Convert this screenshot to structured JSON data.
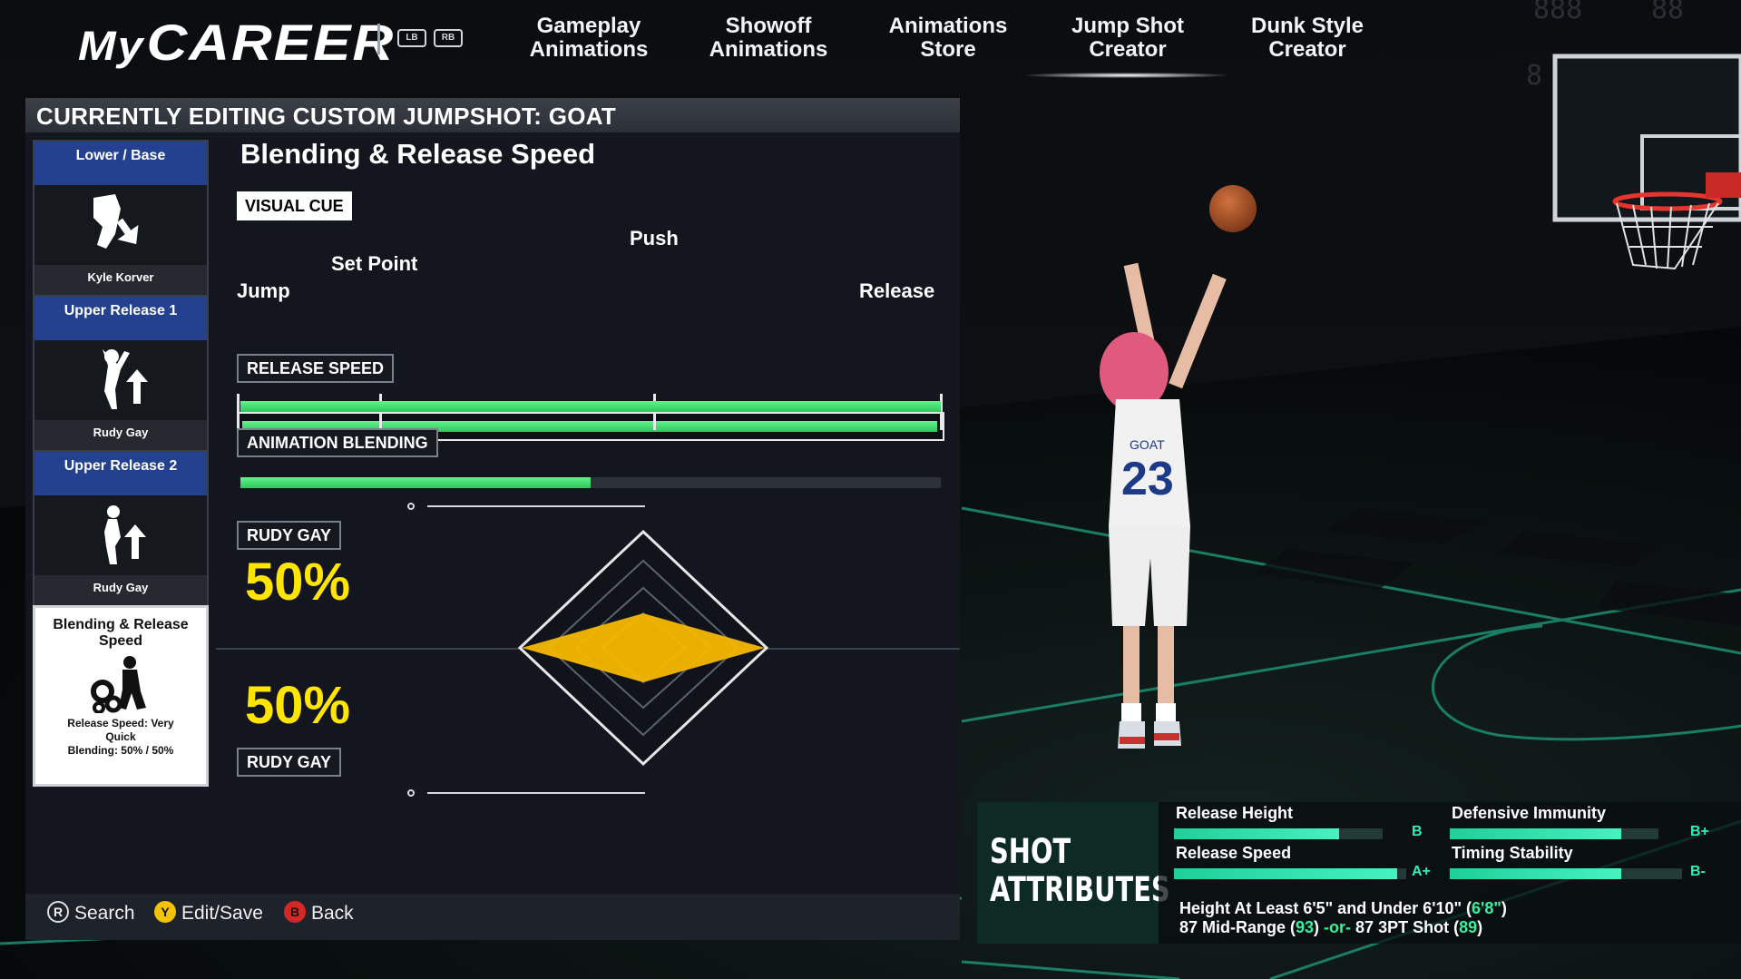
{
  "nav": {
    "logo_prefix": "My",
    "logo_main": "CAREER",
    "lb": "LB",
    "rb": "RB",
    "tabs": [
      {
        "line1": "Gameplay",
        "line2": "Animations"
      },
      {
        "line1": "Showoff",
        "line2": "Animations"
      },
      {
        "line1": "Animations",
        "line2": "Store"
      },
      {
        "line1": "Jump Shot",
        "line2": "Creator"
      },
      {
        "line1": "Dunk Style",
        "line2": "Creator"
      }
    ],
    "active_tab": "Jump Shot Creator"
  },
  "panel": {
    "title": "CURRENTLY EDITING CUSTOM JUMPSHOT: GOAT",
    "slots": [
      {
        "title": "Lower / Base",
        "player": "Kyle Korver",
        "icon": "lower-base-icon"
      },
      {
        "title": "Upper Release 1",
        "player": "Rudy Gay",
        "icon": "upper-release-1-icon"
      },
      {
        "title": "Upper Release 2",
        "player": "Rudy Gay",
        "icon": "upper-release-2-icon"
      }
    ],
    "active_slot": {
      "title": "Blending & Release Speed",
      "desc1": "Release Speed: Very",
      "desc2": "Quick",
      "desc3": "Blending: 50% / 50%",
      "icon": "gears-player-icon"
    },
    "section_title": "Blending & Release Speed",
    "visual_cue": {
      "label": "VISUAL CUE",
      "jump": "Jump",
      "set_point": "Set Point",
      "push": "Push",
      "release": "Release"
    },
    "release_speed": {
      "label": "RELEASE SPEED",
      "value": 1.0
    },
    "animation_blending": {
      "label": "ANIMATION BLENDING",
      "value": 0.5
    },
    "blend_top": {
      "player": "RUDY GAY",
      "percent": "50%"
    },
    "blend_bottom": {
      "player": "RUDY GAY",
      "percent": "50%"
    },
    "diamond_color": "#f5b800",
    "footer": {
      "search": "Search",
      "edit_save": "Edit/Save",
      "back": "Back",
      "r_glyph": "R",
      "y_glyph": "Y",
      "b_glyph": "B"
    }
  },
  "shot_attributes": {
    "heading1": "SHOT",
    "heading2": "ATTRIBUTES",
    "items": [
      {
        "name": "Release Height",
        "grade": "B",
        "value": 0.79
      },
      {
        "name": "Defensive Immunity",
        "grade": "B+",
        "value": 0.82
      },
      {
        "name": "Release Speed",
        "grade": "A+",
        "value": 0.96
      },
      {
        "name": "Timing Stability",
        "grade": "B-",
        "value": 0.74
      }
    ],
    "req1_pre": "Height At Least 6'5\" and Under 6'10\" (",
    "req1_val": "6'8\"",
    "req1_post": ")",
    "req2_a": "87 Mid-Range (",
    "req2_b": "93",
    "req2_c": ") ",
    "req2_or": "-or-",
    "req2_d": " 87 3PT Shot (",
    "req2_e": "89",
    "req2_f": ")",
    "accent": "#2ff0b9"
  },
  "scene": {
    "jersey_name": "GOAT",
    "jersey_number": "23"
  }
}
